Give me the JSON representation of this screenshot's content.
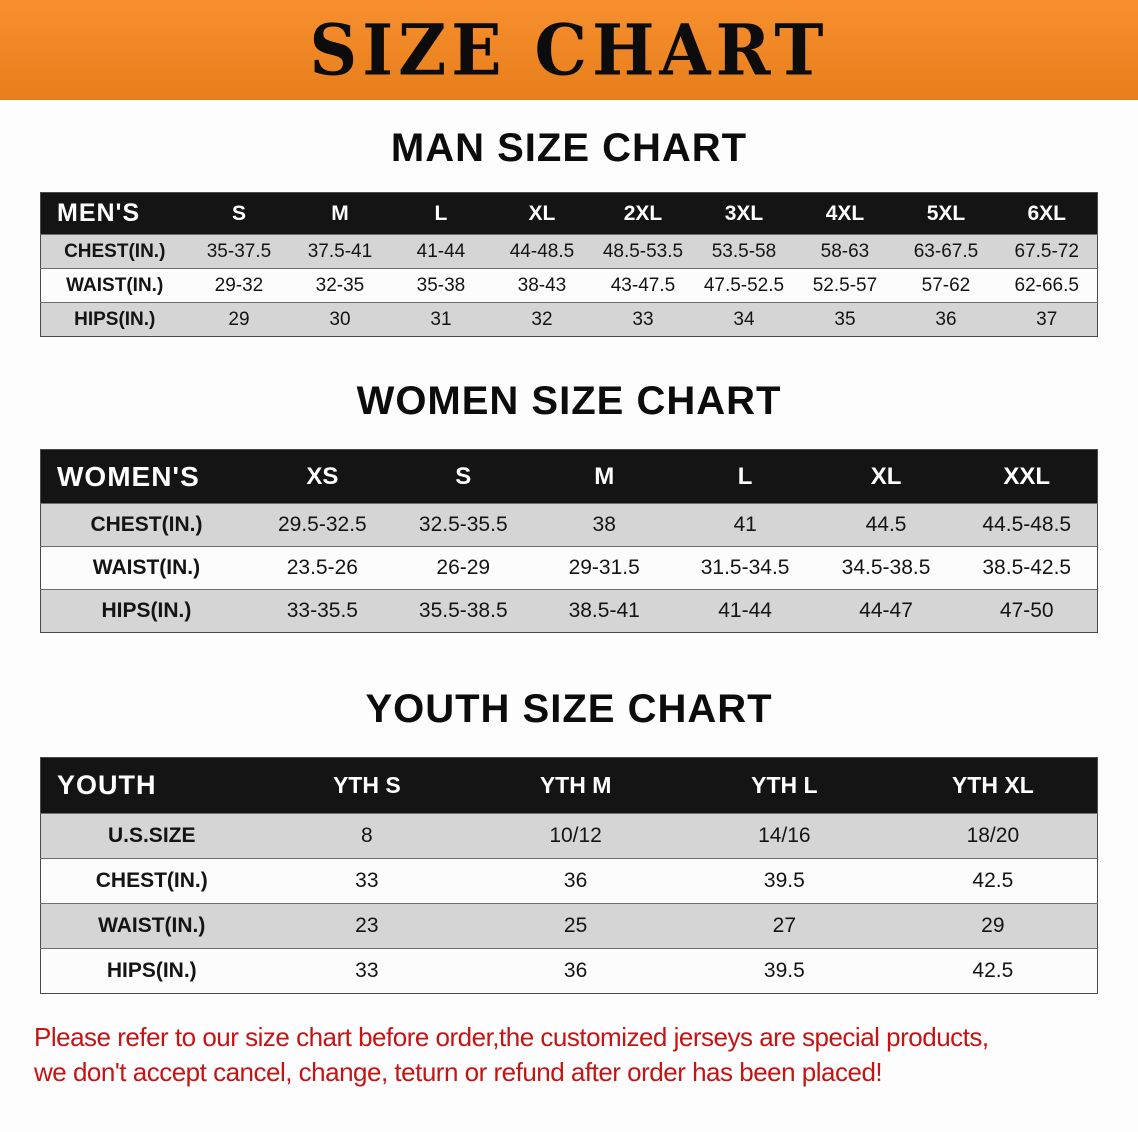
{
  "banner": {
    "title": "SIZE CHART"
  },
  "sections": [
    {
      "id": "men",
      "heading": "MAN SIZE CHART",
      "table": {
        "header": [
          "MEN'S",
          "S",
          "M",
          "L",
          "XL",
          "2XL",
          "3XL",
          "4XL",
          "5XL",
          "6XL"
        ],
        "rows": [
          [
            "CHEST(IN.)",
            "35-37.5",
            "37.5-41",
            "41-44",
            "44-48.5",
            "48.5-53.5",
            "53.5-58",
            "58-63",
            "63-67.5",
            "67.5-72"
          ],
          [
            "WAIST(IN.)",
            "29-32",
            "32-35",
            "35-38",
            "38-43",
            "43-47.5",
            "47.5-52.5",
            "52.5-57",
            "57-62",
            "62-66.5"
          ],
          [
            "HIPS(IN.)",
            "29",
            "30",
            "31",
            "32",
            "33",
            "34",
            "35",
            "36",
            "37"
          ]
        ]
      }
    },
    {
      "id": "women",
      "heading": "WOMEN SIZE CHART",
      "table": {
        "header": [
          "WOMEN'S",
          "XS",
          "S",
          "M",
          "L",
          "XL",
          "XXL"
        ],
        "rows": [
          [
            "CHEST(IN.)",
            "29.5-32.5",
            "32.5-35.5",
            "38",
            "41",
            "44.5",
            "44.5-48.5"
          ],
          [
            "WAIST(IN.)",
            "23.5-26",
            "26-29",
            "29-31.5",
            "31.5-34.5",
            "34.5-38.5",
            "38.5-42.5"
          ],
          [
            "HIPS(IN.)",
            "33-35.5",
            "35.5-38.5",
            "38.5-41",
            "41-44",
            "44-47",
            "47-50"
          ]
        ]
      }
    },
    {
      "id": "youth",
      "heading": "YOUTH SIZE CHART",
      "table": {
        "header": [
          "YOUTH",
          "YTH S",
          "YTH M",
          "YTH L",
          "YTH XL"
        ],
        "rows": [
          [
            "U.S.SIZE",
            "8",
            "10/12",
            "14/16",
            "18/20"
          ],
          [
            "CHEST(IN.)",
            "33",
            "36",
            "39.5",
            "42.5"
          ],
          [
            "WAIST(IN.)",
            "23",
            "25",
            "27",
            "29"
          ],
          [
            "HIPS(IN.)",
            "33",
            "36",
            "39.5",
            "42.5"
          ]
        ]
      }
    }
  ],
  "footer": {
    "line1": "Please refer to our size chart before order,the customized jerseys are special products,",
    "line2": "we don't accept cancel, change, teturn or refund after order has been placed!"
  },
  "colors": {
    "banner_bg": "#f6861d",
    "table_header_bg": "#141414",
    "row_alt_bg": "#d5d5d5",
    "warning_text": "#c41414"
  }
}
